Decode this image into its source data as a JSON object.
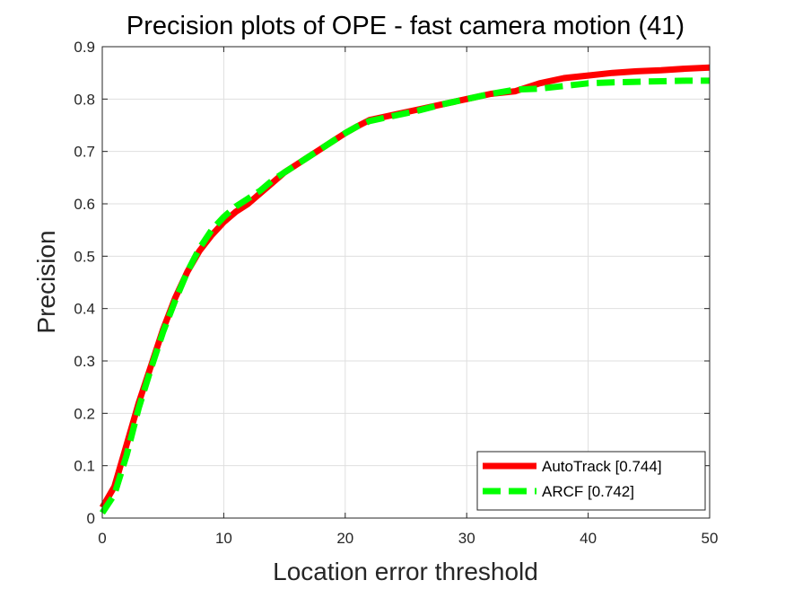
{
  "chart_data": {
    "type": "line",
    "title": "Precision plots of OPE - fast camera motion (41)",
    "xlabel": "Location error threshold",
    "ylabel": "Precision",
    "xlim": [
      0,
      50
    ],
    "ylim": [
      0,
      0.9
    ],
    "xticks": [
      "0",
      "10",
      "20",
      "30",
      "40",
      "50"
    ],
    "yticks": [
      "0",
      "0.1",
      "0.2",
      "0.3",
      "0.4",
      "0.5",
      "0.6",
      "0.7",
      "0.8",
      "0.9"
    ],
    "grid": true,
    "legend_position": "bottom-right",
    "series": [
      {
        "name": "AutoTrack [0.744]",
        "color": "#ff0000",
        "style": "solid",
        "x": [
          0,
          1,
          2,
          3,
          4,
          5,
          6,
          7,
          8,
          9,
          10,
          11,
          12,
          13,
          14,
          15,
          16,
          17,
          18,
          19,
          20,
          21,
          22,
          24,
          26,
          28,
          30,
          32,
          34,
          36,
          38,
          40,
          42,
          44,
          46,
          48,
          50
        ],
        "y": [
          0.02,
          0.06,
          0.14,
          0.22,
          0.29,
          0.36,
          0.42,
          0.47,
          0.51,
          0.54,
          0.565,
          0.585,
          0.6,
          0.62,
          0.64,
          0.66,
          0.675,
          0.69,
          0.705,
          0.72,
          0.735,
          0.748,
          0.76,
          0.77,
          0.78,
          0.79,
          0.8,
          0.81,
          0.815,
          0.83,
          0.84,
          0.845,
          0.85,
          0.853,
          0.855,
          0.858,
          0.86
        ]
      },
      {
        "name": "ARCF [0.742]",
        "color": "#00ff00",
        "style": "dashed",
        "x": [
          0,
          1,
          2,
          3,
          4,
          5,
          6,
          7,
          8,
          9,
          10,
          11,
          12,
          13,
          14,
          15,
          16,
          17,
          18,
          19,
          20,
          21,
          22,
          24,
          26,
          28,
          30,
          32,
          34,
          36,
          38,
          40,
          42,
          44,
          46,
          48,
          50
        ],
        "y": [
          0.01,
          0.045,
          0.12,
          0.21,
          0.285,
          0.355,
          0.415,
          0.47,
          0.515,
          0.55,
          0.575,
          0.595,
          0.61,
          0.625,
          0.645,
          0.66,
          0.675,
          0.69,
          0.705,
          0.72,
          0.735,
          0.748,
          0.758,
          0.768,
          0.778,
          0.79,
          0.8,
          0.81,
          0.818,
          0.82,
          0.825,
          0.83,
          0.832,
          0.833,
          0.834,
          0.835,
          0.835
        ]
      }
    ]
  }
}
